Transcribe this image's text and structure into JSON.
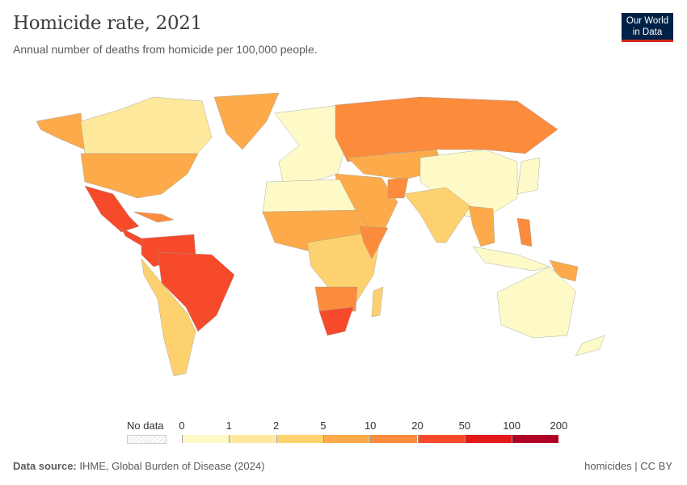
{
  "header": {
    "title": "Homicide rate, 2021",
    "subtitle": "Annual number of deaths from homicide per 100,000 people.",
    "logo": "Our World in Data"
  },
  "legend": {
    "no_data_label": "No data",
    "ticks": [
      "0",
      "1",
      "2",
      "5",
      "10",
      "20",
      "50",
      "100",
      "200"
    ],
    "bin_colors": [
      "#fefac8",
      "#fee89c",
      "#fed16f",
      "#fdab4a",
      "#fd8b3c",
      "#f74a2b",
      "#e31a1c",
      "#b10026"
    ]
  },
  "footer": {
    "source_label": "Data source:",
    "source": "IHME, Global Burden of Disease (2024)",
    "right": "homicides | CC BY"
  }
}
